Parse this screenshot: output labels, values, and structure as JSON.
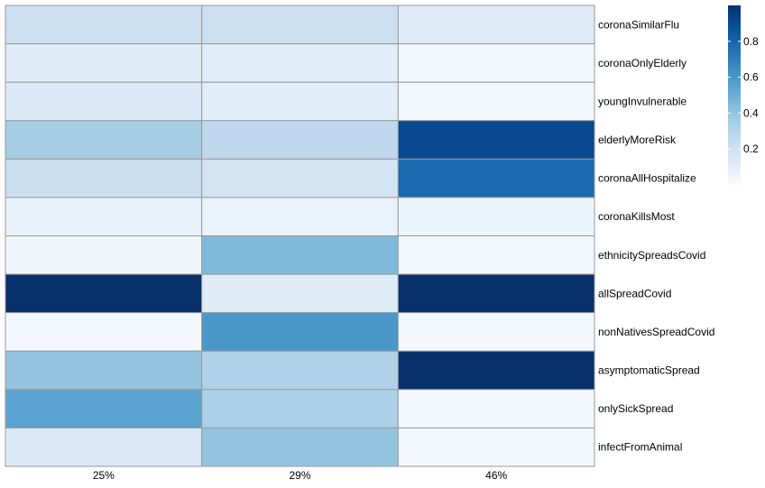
{
  "chart_data": {
    "type": "heatmap",
    "columns": [
      "25%",
      "29%",
      "46%"
    ],
    "rows": [
      "coronaSimilarFlu",
      "coronaOnlyElderly",
      "youngInvulnerable",
      "elderlyMoreRisk",
      "coronaAllHospitalize",
      "coronaKillsMost",
      "ethnicitySpreadsCovid",
      "allSpreadCovid",
      "nonNativesSpreadCovid",
      "asymptomaticSpread",
      "onlySickSpread",
      "infectFromAnimal"
    ],
    "values": [
      [
        0.22,
        0.22,
        0.12
      ],
      [
        0.12,
        0.11,
        0.02
      ],
      [
        0.14,
        0.11,
        0.02
      ],
      [
        0.35,
        0.27,
        0.91
      ],
      [
        0.23,
        0.18,
        0.78
      ],
      [
        0.08,
        0.07,
        0.05
      ],
      [
        0.04,
        0.45,
        0.03
      ],
      [
        1.0,
        0.12,
        1.0
      ],
      [
        0.02,
        0.6,
        0.02
      ],
      [
        0.4,
        0.32,
        1.0
      ],
      [
        0.55,
        0.33,
        0.02
      ],
      [
        0.14,
        0.4,
        0.02
      ]
    ],
    "colorbar": {
      "range": [
        0,
        1
      ],
      "ticks": [
        "0.2",
        "0.4",
        "0.6",
        "0.8"
      ],
      "tick_values": [
        0.2,
        0.4,
        0.6,
        0.8
      ],
      "palette": "Blues"
    },
    "grid": true
  }
}
